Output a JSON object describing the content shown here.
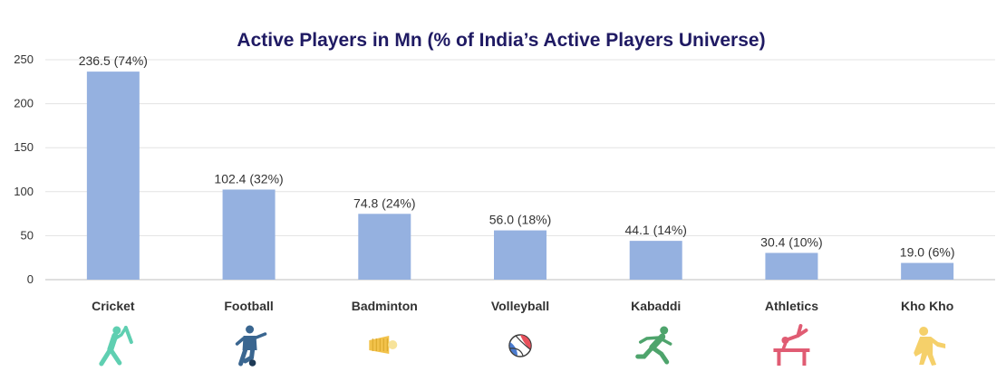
{
  "chart_data": {
    "type": "bar",
    "title": "Active Players in Mn (% of India’s Active Players Universe)",
    "xlabel": "",
    "ylabel": "",
    "ylim": [
      0,
      250
    ],
    "yticks": [
      0,
      50,
      100,
      150,
      200,
      250
    ],
    "grid": true,
    "categories": [
      "Cricket",
      "Football",
      "Badminton",
      "Volleyball",
      "Kabaddi",
      "Athletics",
      "Kho Kho"
    ],
    "values": [
      236.5,
      102.4,
      74.8,
      56.0,
      44.1,
      30.4,
      19.0
    ],
    "data_labels": [
      "236.5 (74%)",
      "102.4 (32%)",
      "74.8 (24%)",
      "56.0 (18%)",
      "44.1 (14%)",
      "30.4 (10%)",
      "19.0 (6%)"
    ],
    "bar_color": "#95b1e0",
    "icons": [
      {
        "name": "cricket-player-icon",
        "color": "#5fcfb1"
      },
      {
        "name": "football-player-icon",
        "color": "#3a6690"
      },
      {
        "name": "shuttlecock-icon",
        "color": "#f2c24b"
      },
      {
        "name": "volleyball-icon",
        "color": "#e8505b"
      },
      {
        "name": "kabaddi-player-icon",
        "color": "#4ea46c"
      },
      {
        "name": "gymnast-icon",
        "color": "#e05c73"
      },
      {
        "name": "kho-kho-player-icon",
        "color": "#f5d06a"
      }
    ]
  }
}
